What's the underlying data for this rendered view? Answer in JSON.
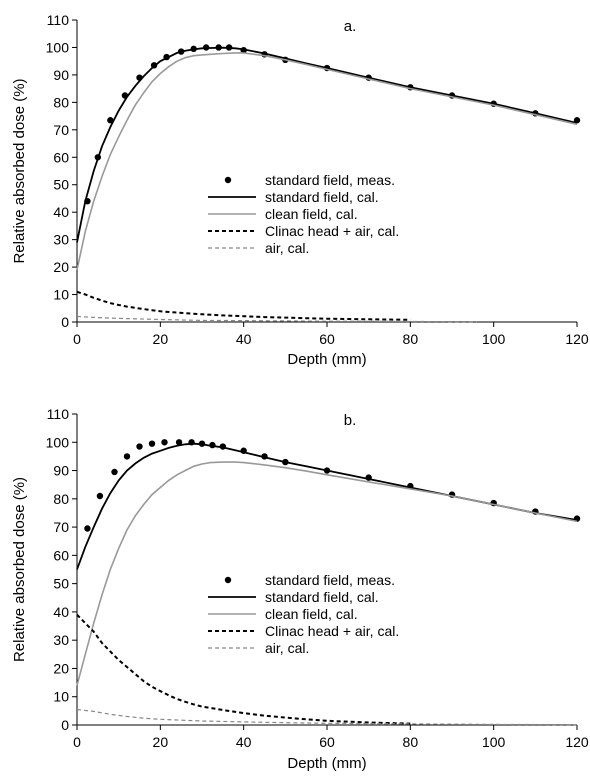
{
  "chart_data": [
    {
      "type": "line",
      "panel_label": "a.",
      "xlabel": "Depth (mm)",
      "ylabel": "Relative absorbed dose (%)",
      "xlim": [
        0,
        120
      ],
      "ylim": [
        0,
        110
      ],
      "xticks": [
        "0",
        "20",
        "40",
        "60",
        "80",
        "100",
        "120"
      ],
      "yticks": [
        "0",
        "10",
        "20",
        "30",
        "40",
        "50",
        "60",
        "70",
        "80",
        "90",
        "100",
        "110"
      ],
      "grid": false,
      "legend_position": "center",
      "series": [
        {
          "name": "standard field, meas.",
          "style": "marker",
          "color": "#000000",
          "x": [
            2.5,
            5,
            8,
            11.5,
            15,
            18.5,
            21.5,
            25,
            28,
            31,
            34,
            36.5,
            40,
            45,
            50,
            60,
            70,
            80,
            90,
            100,
            110,
            120
          ],
          "y": [
            44,
            60,
            73.5,
            82.5,
            89,
            93.5,
            96.5,
            98.5,
            99.5,
            100,
            100,
            100,
            99,
            97.5,
            95.5,
            92.5,
            89,
            85.5,
            82.5,
            79.5,
            76,
            73.5
          ]
        },
        {
          "name": "standard field, cal.",
          "style": "solid",
          "color": "#000000",
          "x": [
            0,
            2,
            4,
            6,
            8,
            10,
            12,
            14,
            16,
            18,
            20,
            22,
            24,
            26,
            28,
            30,
            32,
            35,
            38,
            40,
            45,
            50,
            55,
            60,
            70,
            80,
            90,
            100,
            110,
            120
          ],
          "y": [
            29,
            44,
            55,
            64,
            71,
            77,
            82,
            86,
            89.5,
            92.5,
            95,
            96.5,
            98,
            98.8,
            99.3,
            99.7,
            99.8,
            99.9,
            99.7,
            99.3,
            97.8,
            96,
            94.2,
            92.5,
            89,
            85.5,
            82.5,
            79.5,
            76,
            72.5
          ]
        },
        {
          "name": "clean field, cal.",
          "style": "solid",
          "color": "#999999",
          "x": [
            0,
            2,
            4,
            6,
            8,
            10,
            12,
            14,
            16,
            18,
            20,
            22,
            24,
            26,
            28,
            30,
            32,
            35,
            38,
            40,
            45,
            50,
            55,
            60,
            70,
            80,
            90,
            100,
            110,
            120
          ],
          "y": [
            19,
            33,
            44,
            53,
            61,
            67.5,
            73.5,
            79,
            83.5,
            87.5,
            90.5,
            93,
            95,
            96.3,
            97,
            97.3,
            97.5,
            97.8,
            98,
            98,
            97,
            95.5,
            93.8,
            92,
            88.5,
            85,
            82,
            79,
            75.5,
            72
          ]
        },
        {
          "name": "Clinac head + air, cal.",
          "style": "dashed",
          "color": "#000000",
          "x": [
            0,
            2,
            4,
            6,
            8,
            10,
            12,
            15,
            18,
            20,
            25,
            30,
            35,
            40,
            45,
            50,
            55,
            60,
            70,
            80
          ],
          "y": [
            11,
            10,
            8.8,
            7.8,
            6.9,
            6.2,
            5.6,
            4.9,
            4.3,
            3.9,
            3.3,
            2.8,
            2.4,
            2.1,
            1.8,
            1.6,
            1.4,
            1.2,
            1,
            0.8
          ]
        },
        {
          "name": "air, cal.",
          "style": "dashed",
          "color": "#888888",
          "x": [
            0,
            5,
            10,
            20,
            30,
            40,
            50,
            60,
            70,
            80,
            90,
            96
          ],
          "y": [
            2,
            1.6,
            1.3,
            0.9,
            0.6,
            0.5,
            0.4,
            0.3,
            0.25,
            0.2,
            0.15,
            0.1
          ]
        }
      ]
    },
    {
      "type": "line",
      "panel_label": "b.",
      "xlabel": "Depth (mm)",
      "ylabel": "Relative absorbed dose (%)",
      "xlim": [
        0,
        120
      ],
      "ylim": [
        0,
        110
      ],
      "xticks": [
        "0",
        "20",
        "40",
        "60",
        "80",
        "100",
        "120"
      ],
      "yticks": [
        "0",
        "10",
        "20",
        "30",
        "40",
        "50",
        "60",
        "70",
        "80",
        "90",
        "100",
        "110"
      ],
      "grid": false,
      "legend_position": "center",
      "series": [
        {
          "name": "standard field, meas.",
          "style": "marker",
          "color": "#000000",
          "x": [
            2.5,
            5.5,
            9,
            12,
            15,
            18,
            21,
            24.5,
            27.5,
            30,
            32.5,
            35,
            40,
            45,
            50,
            60,
            70,
            80,
            90,
            100,
            110,
            120
          ],
          "y": [
            69.5,
            81,
            89.5,
            95,
            98.5,
            99.5,
            100,
            100,
            100,
            99.5,
            99,
            98.5,
            97,
            95,
            93,
            90,
            87.5,
            84.5,
            81.5,
            78.5,
            75.5,
            73
          ]
        },
        {
          "name": "standard field, cal.",
          "style": "solid",
          "color": "#000000",
          "x": [
            0,
            2,
            4,
            6,
            8,
            10,
            12,
            14,
            16,
            18,
            20,
            22,
            24,
            26,
            28,
            30,
            32,
            35,
            38,
            40,
            45,
            50,
            55,
            60,
            70,
            80,
            90,
            100,
            110,
            120
          ],
          "y": [
            55,
            63,
            70,
            76.5,
            82,
            86.5,
            90,
            92.5,
            94.5,
            96,
            97,
            98,
            98.8,
            99.3,
            99.5,
            99.3,
            98.8,
            98.2,
            97.2,
            96.5,
            94.7,
            93,
            91.5,
            90,
            87,
            84,
            81,
            78,
            75,
            72.5
          ]
        },
        {
          "name": "clean field, cal.",
          "style": "solid",
          "color": "#999999",
          "x": [
            0,
            2,
            4,
            6,
            8,
            10,
            12,
            14,
            16,
            18,
            20,
            22,
            24,
            26,
            28,
            30,
            32,
            35,
            38,
            40,
            45,
            50,
            55,
            60,
            70,
            80,
            90,
            100,
            110,
            120
          ],
          "y": [
            14,
            25,
            36,
            46,
            55,
            62.5,
            69,
            74,
            78,
            81.5,
            84,
            86.5,
            88.5,
            90,
            91.5,
            92.3,
            92.8,
            93,
            93,
            92.8,
            92,
            91,
            89.8,
            88.5,
            86,
            83.5,
            81,
            78,
            75,
            72
          ]
        },
        {
          "name": "Clinac head + air, cal.",
          "style": "dashed",
          "color": "#000000",
          "x": [
            0,
            2,
            4,
            6,
            8,
            10,
            12,
            14,
            16,
            18,
            20,
            22,
            24,
            26,
            28,
            30,
            35,
            40,
            45,
            50,
            55,
            60,
            70,
            80
          ],
          "y": [
            39,
            36,
            33,
            29,
            26,
            23,
            20.5,
            18,
            15.5,
            13.5,
            12,
            10.5,
            9.2,
            8.2,
            7.3,
            6.5,
            5.3,
            4.2,
            3.3,
            2.6,
            2,
            1.5,
            0.9,
            0.5
          ]
        },
        {
          "name": "air, cal.",
          "style": "dashed",
          "color": "#888888",
          "x": [
            0,
            4,
            8,
            12,
            16,
            20,
            25,
            30,
            40,
            50,
            60,
            80,
            100,
            120
          ],
          "y": [
            5.5,
            4.8,
            3.8,
            3,
            2.4,
            2,
            1.7,
            1.4,
            1.1,
            0.8,
            0.6,
            0.4,
            0.2,
            0.1
          ]
        }
      ]
    }
  ]
}
